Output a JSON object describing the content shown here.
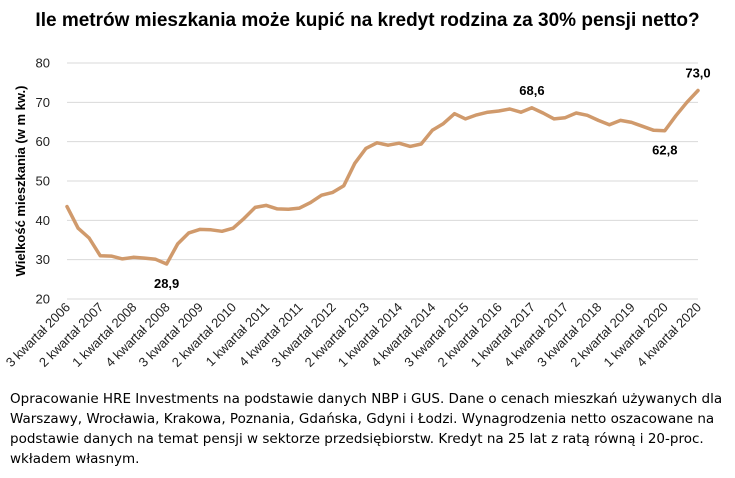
{
  "title": "Ile metrów mieszkania może kupić na kredyt rodzina za 30% pensji netto?",
  "note": "Opracowanie HRE Investments na podstawie danych NBP i GUS. Dane o cenach mieszkań używanych dla Warszawy, Wrocławia, Krakowa, Poznania, Gdańska, Gdyni i Łodzi. Wynagrodzenia netto oszacowane na podstawie danych na temat pensji w sektorze przedsiębiorstw. Kredyt na 25 lat z ratą równą i 20-proc. wkładem własnym.",
  "colors": {
    "line": "#D09A6C",
    "grid": "#D9D9D9"
  },
  "chart_data": {
    "type": "line",
    "title": "Ile metrów mieszkania może kupić na kredyt rodzina za 30% pensji netto?",
    "xlabel": "",
    "ylabel": "Wielkość mieszkania (w m kw.)",
    "ylim": [
      20,
      80
    ],
    "yticks": [
      20,
      30,
      40,
      50,
      60,
      70,
      80
    ],
    "grid": true,
    "legend": "none",
    "x": [
      "3 kwartał 2006",
      "4 kwartał 2006",
      "1 kwartał 2007",
      "2 kwartał 2007",
      "3 kwartał 2007",
      "4 kwartał 2007",
      "1 kwartał 2008",
      "2 kwartał 2008",
      "3 kwartał 2008",
      "4 kwartał 2008",
      "1 kwartał 2009",
      "2 kwartał 2009",
      "3 kwartał 2009",
      "4 kwartał 2009",
      "1 kwartał 2010",
      "2 kwartał 2010",
      "3 kwartał 2010",
      "4 kwartał 2010",
      "1 kwartał 2011",
      "2 kwartał 2011",
      "3 kwartał 2011",
      "4 kwartał 2011",
      "1 kwartał 2012",
      "2 kwartał 2012",
      "3 kwartał 2012",
      "4 kwartał 2012",
      "1 kwartał 2013",
      "2 kwartał 2013",
      "3 kwartał 2013",
      "4 kwartał 2013",
      "1 kwartał 2014",
      "2 kwartał 2014",
      "3 kwartał 2014",
      "4 kwartał 2014",
      "1 kwartał 2015",
      "2 kwartał 2015",
      "3 kwartał 2015",
      "4 kwartał 2015",
      "1 kwartał 2016",
      "2 kwartał 2016",
      "3 kwartał 2016",
      "4 kwartał 2016",
      "1 kwartał 2017",
      "2 kwartał 2017",
      "3 kwartał 2017",
      "4 kwartał 2017",
      "1 kwartał 2018",
      "2 kwartał 2018",
      "3 kwartał 2018",
      "4 kwartał 2018",
      "1 kwartał 2019",
      "2 kwartał 2019",
      "3 kwartał 2019",
      "4 kwartał 2019",
      "1 kwartał 2020",
      "2 kwartał 2020",
      "3 kwartał 2020",
      "4 kwartał 2020"
    ],
    "tick_labels": [
      "3 kwartał 2006",
      "2 kwartał 2007",
      "1 kwartał 2008",
      "4 kwartał 2008",
      "3 kwartał 2009",
      "2 kwartał 2010",
      "1 kwartał 2011",
      "4 kwartał 2011",
      "3 kwartał 2012",
      "2 kwartał 2013",
      "1 kwartał 2014",
      "4 kwartał 2014",
      "3 kwartał 2015",
      "2 kwartał 2016",
      "1 kwartał 2017",
      "4 kwartał 2017",
      "3 kwartał 2018",
      "2 kwartał 2019",
      "1 kwartał 2020",
      "4 kwartał 2020"
    ],
    "values": [
      43.5,
      38.0,
      35.5,
      31.0,
      30.9,
      30.2,
      30.6,
      30.4,
      30.1,
      28.9,
      34.0,
      36.8,
      37.7,
      37.6,
      37.2,
      38.0,
      40.5,
      43.3,
      43.8,
      42.9,
      42.8,
      43.1,
      44.5,
      46.4,
      47.1,
      48.8,
      54.5,
      58.3,
      59.7,
      59.1,
      59.6,
      58.8,
      59.4,
      62.9,
      64.6,
      67.1,
      65.8,
      66.8,
      67.5,
      67.8,
      68.3,
      67.5,
      68.6,
      67.3,
      65.8,
      66.1,
      67.3,
      66.7,
      65.4,
      64.3,
      65.4,
      64.9,
      63.9,
      62.9,
      62.8,
      66.6,
      70.0,
      73.0
    ],
    "annotations": [
      {
        "label": "28,9",
        "index": 9,
        "position": "below"
      },
      {
        "label": "68,6",
        "index": 42,
        "position": "above"
      },
      {
        "label": "62,8",
        "index": 54,
        "position": "below"
      },
      {
        "label": "73,0",
        "index": 57,
        "position": "above"
      }
    ]
  }
}
